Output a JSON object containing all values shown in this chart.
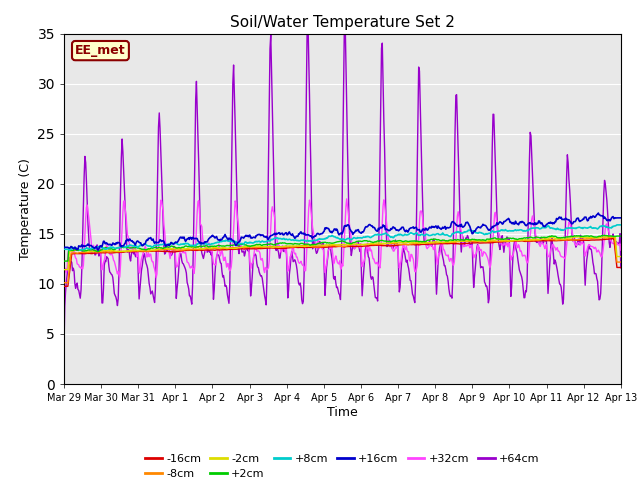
{
  "title": "Soil/Water Temperature Set 2",
  "xlabel": "Time",
  "ylabel": "Temperature (C)",
  "ylim": [
    0,
    35
  ],
  "yticks": [
    0,
    5,
    10,
    15,
    20,
    25,
    30,
    35
  ],
  "plot_bg": "#e8e8e8",
  "fig_bg": "#ffffff",
  "annotation_text": "EE_met",
  "annotation_bg": "#ffffcc",
  "annotation_border": "#8b0000",
  "annotation_text_color": "#8b0000",
  "series_colors": {
    "-16cm": "#dd0000",
    "-8cm": "#ff8800",
    "-2cm": "#dddd00",
    "+2cm": "#00cc00",
    "+8cm": "#00cccc",
    "+16cm": "#0000cc",
    "+32cm": "#ff44ff",
    "+64cm": "#9900cc"
  },
  "tick_labels": [
    "Mar 29",
    "Mar 30",
    "Mar 31",
    "Apr 1",
    "Apr 2",
    "Apr 3",
    "Apr 4",
    "Apr 5",
    "Apr 6",
    "Apr 7",
    "Apr 8",
    "Apr 9",
    "Apr 10",
    "Apr 11",
    "Apr 12",
    "Apr 13"
  ],
  "tick_positions": [
    0,
    1,
    2,
    3,
    4,
    5,
    6,
    7,
    8,
    9,
    10,
    11,
    12,
    13,
    14,
    15
  ]
}
